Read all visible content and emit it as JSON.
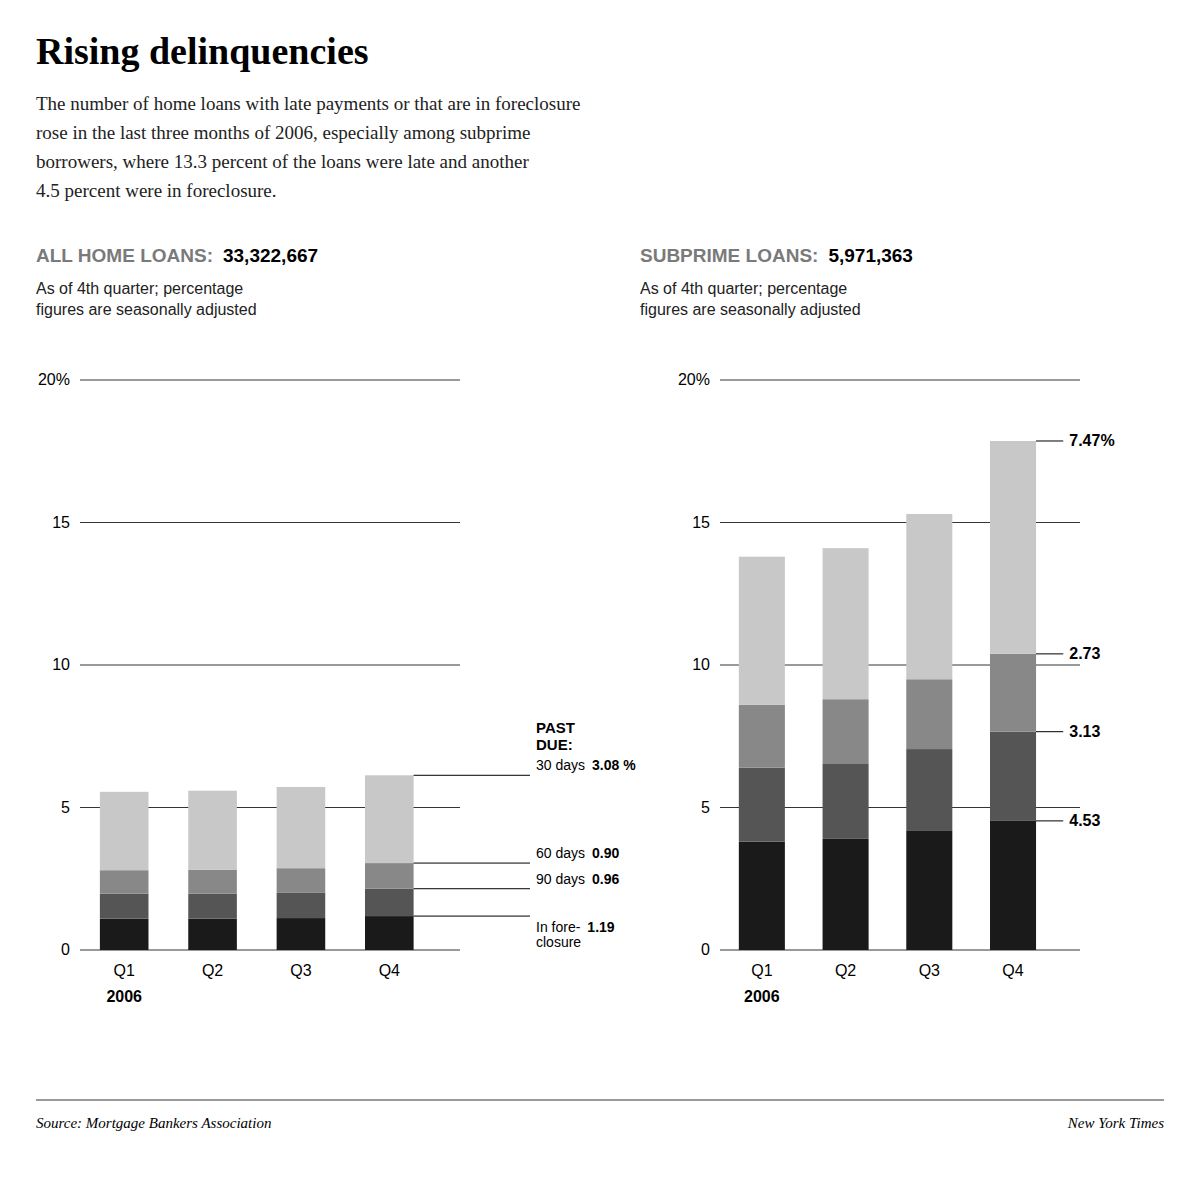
{
  "title": "Rising delinquencies",
  "subtitle": "The number of home loans with late payments or that are in foreclosure\nrose in the last three months of 2006, especially among subprime\nborrowers, where 13.3 percent of the loans were late and another\n4.5 percent were in foreclosure.",
  "annotations": [
    "Source: Mortgage Bankers Association",
    "New York Times"
  ],
  "chart_data": [
    {
      "type": "bar",
      "stacked": true,
      "grid": true,
      "title": "ALL HOME LOANS:",
      "subtitle": "As of 4th quarter; percentage\nfigures are seasonally adjusted",
      "annotations": [
        "33,322,667",
        "PAST\nDUE:"
      ],
      "categories": [
        "Q1",
        "Q2",
        "Q3",
        "Q4"
      ],
      "xlabel": "2006",
      "ylim": [
        0,
        20
      ],
      "yticks": [
        0,
        5,
        10,
        15,
        {
          "value": 20,
          "label": "20%"
        }
      ],
      "series": [
        {
          "name": "In fore-\nclosure",
          "color": "#1a1a1a",
          "values": [
            1.1,
            1.1,
            1.12,
            1.19
          ],
          "value_labels": [
            null,
            null,
            null,
            "1.19"
          ]
        },
        {
          "name": "90 days",
          "color": "#555555",
          "values": [
            0.88,
            0.88,
            0.9,
            0.96
          ],
          "value_labels": [
            null,
            null,
            null,
            "0.96"
          ]
        },
        {
          "name": "60 days",
          "color": "#888888",
          "values": [
            0.82,
            0.83,
            0.85,
            0.9
          ],
          "value_labels": [
            null,
            null,
            null,
            "0.90"
          ]
        },
        {
          "name": "30 days",
          "color": "#c8c8c8",
          "values": [
            2.75,
            2.78,
            2.85,
            3.08
          ],
          "value_labels": [
            null,
            null,
            null,
            "3.08 %"
          ]
        }
      ]
    },
    {
      "type": "bar",
      "stacked": true,
      "grid": true,
      "title": "SUBPRIME LOANS:",
      "subtitle": "As of 4th quarter; percentage\nfigures are seasonally adjusted",
      "annotations": [
        "5,971,363"
      ],
      "categories": [
        "Q1",
        "Q2",
        "Q3",
        "Q4"
      ],
      "xlabel": "2006",
      "ylim": [
        0,
        20
      ],
      "yticks": [
        0,
        5,
        10,
        15,
        {
          "value": 20,
          "label": "20%"
        }
      ],
      "series": [
        {
          "color": "#1a1a1a",
          "values": [
            3.8,
            3.9,
            4.2,
            4.53
          ],
          "value_labels": [
            null,
            null,
            null,
            "4.53"
          ]
        },
        {
          "color": "#555555",
          "values": [
            2.6,
            2.65,
            2.85,
            3.13
          ],
          "value_labels": [
            null,
            null,
            null,
            "3.13"
          ]
        },
        {
          "color": "#888888",
          "values": [
            2.2,
            2.25,
            2.45,
            2.73
          ],
          "value_labels": [
            null,
            null,
            null,
            "2.73"
          ]
        },
        {
          "color": "#c8c8c8",
          "values": [
            5.2,
            5.3,
            5.8,
            7.47
          ],
          "value_labels": [
            null,
            null,
            null,
            "7.47%"
          ]
        }
      ]
    }
  ]
}
